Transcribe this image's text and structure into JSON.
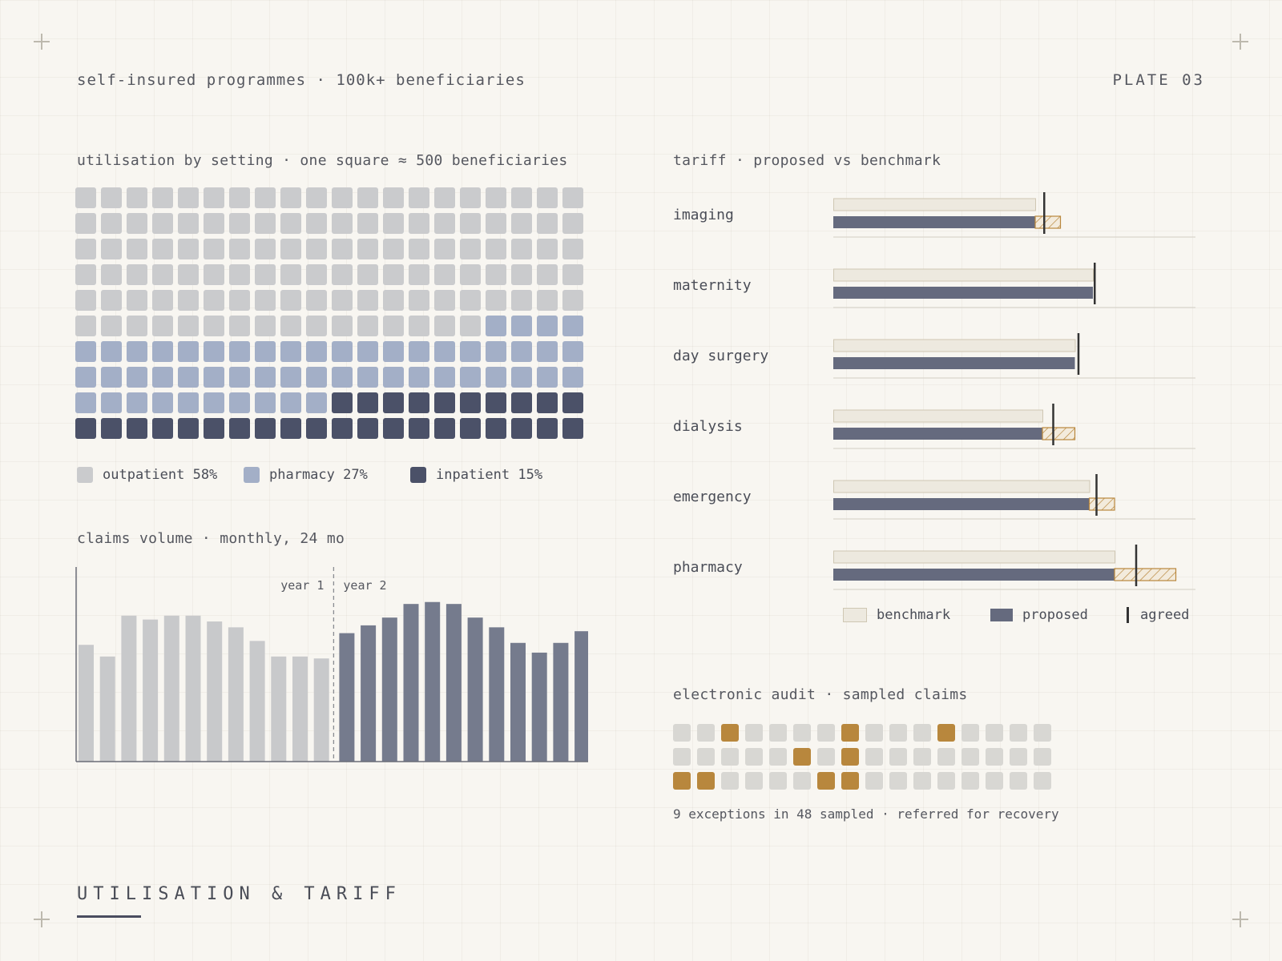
{
  "header": {
    "left": "self-insured programmes · 100k+ beneficiaries",
    "right": "PLATE 03"
  },
  "footer": {
    "title": "UTILISATION & TARIFF"
  },
  "colors": {
    "outpatient": "#cacbcd",
    "pharmacy": "#a3afc7",
    "inpatient": "#4b5168",
    "benchmark": "#ede9df",
    "benchmark_border": "#cfc7b3",
    "proposed": "#656a7e",
    "agreed": "#333333",
    "exception": "#b8873d",
    "sampled": "#d8d7d3"
  },
  "chart_data": [
    {
      "id": "utilisation",
      "type": "waffle",
      "title": "utilisation by setting · one square ≈ 500 beneficiaries",
      "total_squares": 200,
      "categories": [
        {
          "name": "outpatient",
          "legend": "outpatient 58%",
          "percent": 58,
          "color": "#cacbcd"
        },
        {
          "name": "pharmacy",
          "legend": "pharmacy 27%",
          "percent": 27,
          "color": "#a3afc7"
        },
        {
          "name": "inpatient",
          "legend": "inpatient 15%",
          "percent": 15,
          "color": "#4b5168"
        }
      ]
    },
    {
      "id": "claims",
      "type": "bar",
      "title": "claims volume · monthly, 24 mo",
      "annotations": [
        "year 1",
        "year 2"
      ],
      "year1_values": [
        60,
        54,
        75,
        73,
        75,
        75,
        72,
        69,
        62,
        54,
        54,
        53
      ],
      "year2_values": [
        66,
        70,
        74,
        81,
        82,
        81,
        74,
        69,
        61,
        56,
        61,
        67
      ],
      "ylim": [
        0,
        100
      ]
    },
    {
      "id": "tariff",
      "type": "bar",
      "title": "tariff · proposed vs benchmark",
      "categories": [
        "imaging",
        "maternity",
        "day surgery",
        "dialysis",
        "emergency",
        "pharmacy"
      ],
      "series": [
        {
          "name": "benchmark",
          "values": [
            56,
            72,
            67,
            58,
            71,
            78
          ]
        },
        {
          "name": "proposed",
          "values": [
            63,
            72,
            67,
            67,
            78,
            95
          ]
        },
        {
          "name": "agreed",
          "values": [
            58.5,
            72.5,
            68,
            61,
            73,
            84
          ]
        }
      ],
      "xlim": [
        0,
        100
      ],
      "legend": [
        "benchmark",
        "proposed",
        "agreed"
      ]
    },
    {
      "id": "audit",
      "type": "grid",
      "title": "electronic audit · sampled claims",
      "sampled": 48,
      "exceptions": 9,
      "exception_cells": [
        2,
        7,
        11,
        21,
        23,
        32,
        33,
        38,
        39
      ],
      "caption": "9 exceptions in 48 sampled · referred for recovery"
    }
  ]
}
